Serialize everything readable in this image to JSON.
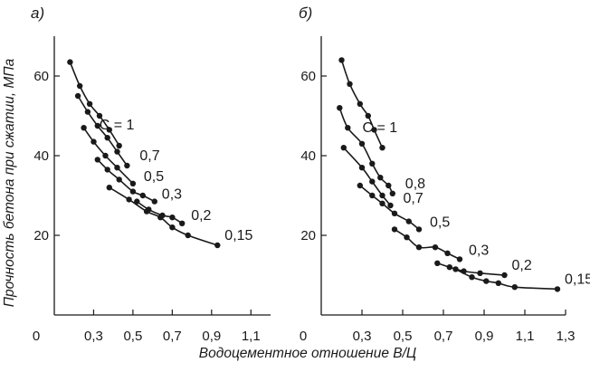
{
  "ylabel": "Прочность бетона при сжатии, МПа",
  "xlabel": "Водоцементное отношение В/Ц",
  "chart_data": [
    {
      "type": "line",
      "panel_label": "а)",
      "xlim": [
        0.1,
        1.2
      ],
      "ylim": [
        0,
        70
      ],
      "origin_label": "0",
      "x_ticks": [
        0.3,
        0.5,
        0.7,
        0.9,
        1.1
      ],
      "x_tick_labels": [
        "0,3",
        "0,5",
        "0,7",
        "0,9",
        "1,1"
      ],
      "y_ticks": [
        20,
        40,
        60
      ],
      "y_tick_labels": [
        "20",
        "40",
        "60"
      ],
      "series": [
        {
          "name": "С = 1",
          "x": [
            0.18,
            0.23,
            0.28,
            0.33,
            0.38,
            0.43
          ],
          "y": [
            63.5,
            57.5,
            53.0,
            50.0,
            46.5,
            42.5
          ]
        },
        {
          "name": "0,7",
          "x": [
            0.22,
            0.27,
            0.32,
            0.37,
            0.42,
            0.47
          ],
          "y": [
            55.0,
            51.0,
            47.5,
            44.5,
            41.0,
            37.5
          ]
        },
        {
          "name": "0,5",
          "x": [
            0.25,
            0.3,
            0.36,
            0.42,
            0.5
          ],
          "y": [
            47.0,
            43.5,
            40.0,
            37.0,
            33.0
          ]
        },
        {
          "name": "0,3",
          "x": [
            0.32,
            0.37,
            0.43,
            0.5,
            0.55,
            0.61
          ],
          "y": [
            39.0,
            36.5,
            34.0,
            31.0,
            30.0,
            28.5
          ]
        },
        {
          "name": "0,2",
          "x": [
            0.52,
            0.58,
            0.65,
            0.7,
            0.75
          ],
          "y": [
            28.5,
            26.5,
            25.0,
            24.5,
            23.0
          ]
        },
        {
          "name": "0,15",
          "x": [
            0.38,
            0.48,
            0.57,
            0.64,
            0.7,
            0.78,
            0.93
          ],
          "y": [
            32.0,
            29.0,
            26.0,
            24.5,
            22.0,
            20.0,
            17.5
          ]
        }
      ]
    },
    {
      "type": "line",
      "panel_label": "б)",
      "xlim": [
        0.1,
        1.3
      ],
      "ylim": [
        0,
        70
      ],
      "origin_label": "0",
      "x_ticks": [
        0.3,
        0.5,
        0.7,
        0.9,
        1.1,
        1.3
      ],
      "x_tick_labels": [
        "0,3",
        "0,5",
        "0,7",
        "0,9",
        "1,1",
        "1,3"
      ],
      "y_ticks": [
        20,
        40,
        60
      ],
      "y_tick_labels": [
        "20",
        "40",
        "60"
      ],
      "series": [
        {
          "name": "С = 1",
          "x": [
            0.2,
            0.24,
            0.29,
            0.33,
            0.36,
            0.4
          ],
          "y": [
            64.0,
            58.0,
            53.0,
            50.0,
            46.5,
            42.0
          ]
        },
        {
          "name": "0,8",
          "x": [
            0.19,
            0.23,
            0.3,
            0.35,
            0.39,
            0.43,
            0.45
          ],
          "y": [
            52.0,
            47.0,
            43.0,
            38.0,
            34.5,
            32.5,
            30.5
          ]
        },
        {
          "name": "0,7",
          "x": [
            0.21,
            0.3,
            0.35,
            0.4,
            0.44
          ],
          "y": [
            42.0,
            37.0,
            33.5,
            30.0,
            27.5
          ]
        },
        {
          "name": "0,5",
          "x": [
            0.29,
            0.35,
            0.4,
            0.46,
            0.53,
            0.58
          ],
          "y": [
            32.5,
            30.0,
            28.0,
            25.5,
            23.5,
            21.5
          ]
        },
        {
          "name": "0,3",
          "x": [
            0.46,
            0.52,
            0.58,
            0.66,
            0.72,
            0.78
          ],
          "y": [
            21.5,
            19.5,
            17.0,
            17.0,
            15.5,
            14.0
          ]
        },
        {
          "name": "0,2",
          "x": [
            0.67,
            0.73,
            0.8,
            0.88,
            1.0
          ],
          "y": [
            13.0,
            12.0,
            11.0,
            10.5,
            10.0
          ]
        },
        {
          "name": "0,15",
          "x": [
            0.76,
            0.84,
            0.91,
            0.97,
            1.05,
            1.26
          ],
          "y": [
            11.5,
            9.5,
            8.5,
            8.0,
            7.0,
            6.5
          ]
        }
      ]
    }
  ]
}
